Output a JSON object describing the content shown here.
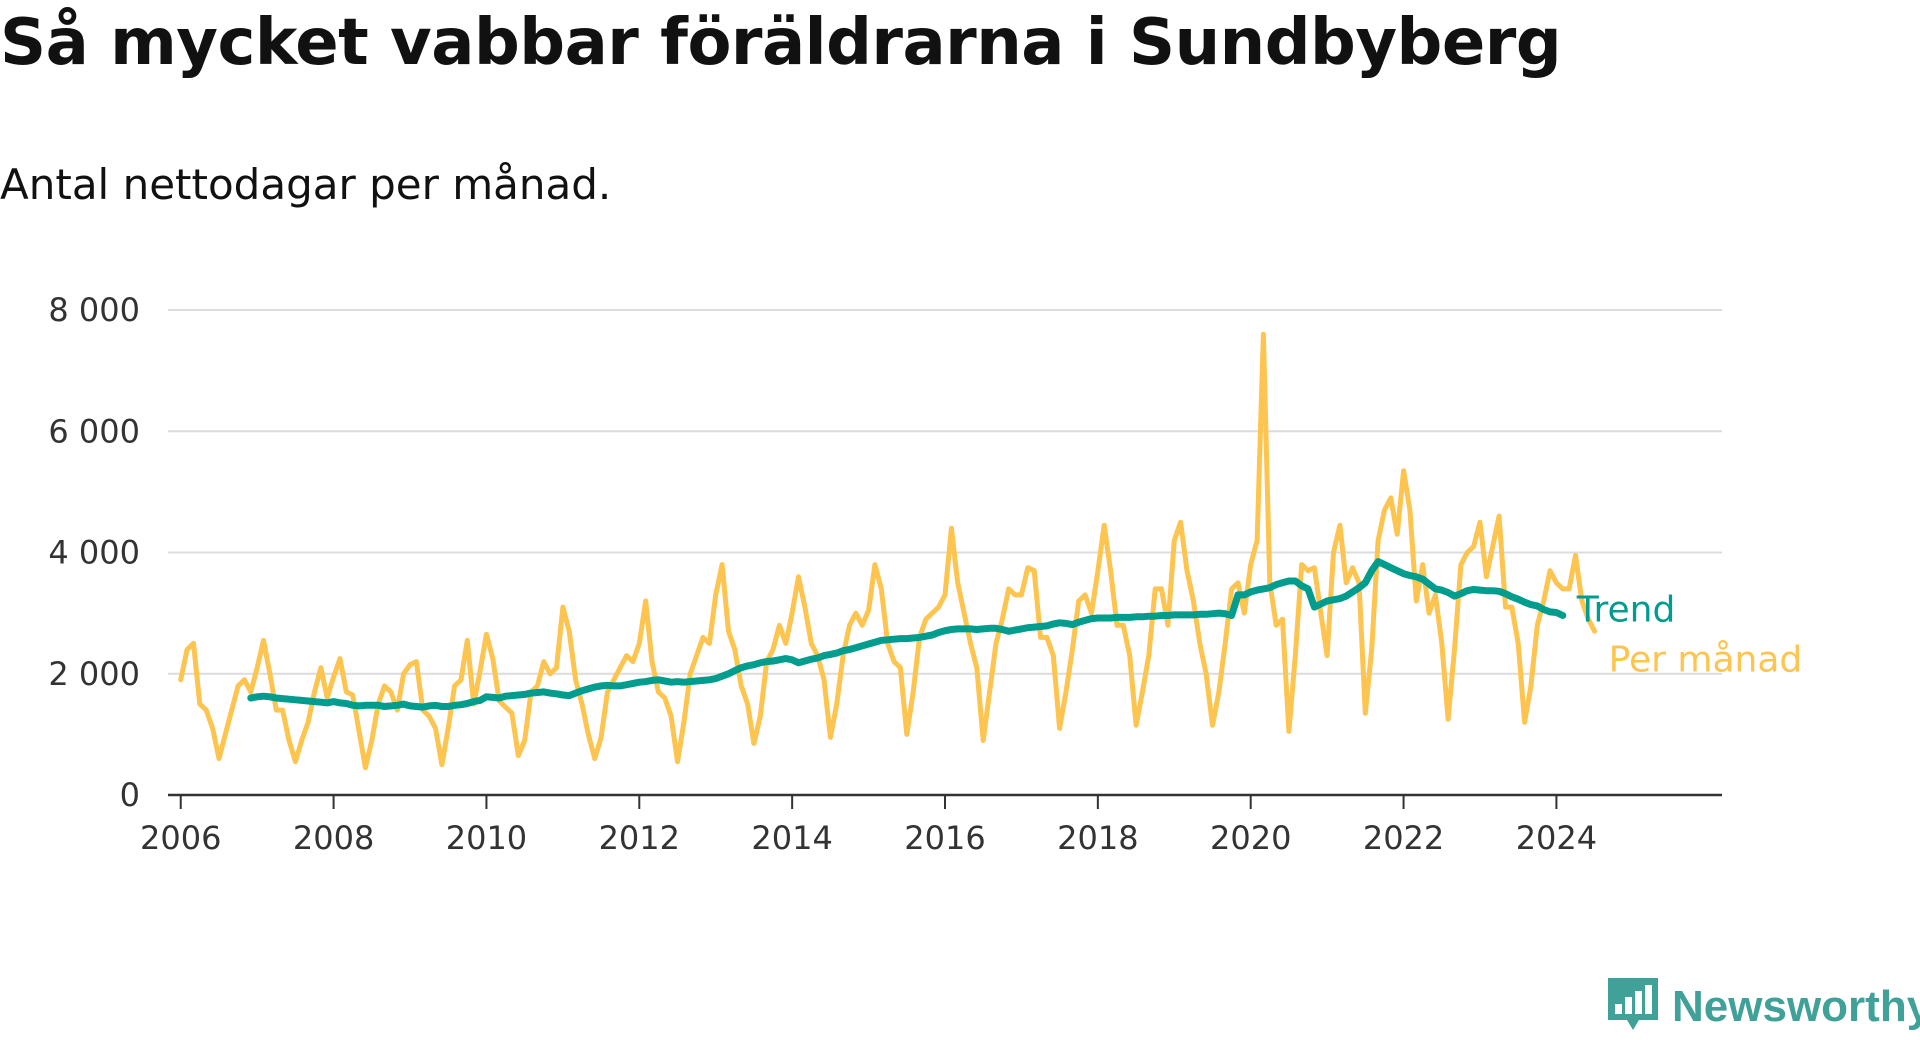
{
  "page": {
    "title": "Så mycket vabbar föräldrarna i Sundbyberg",
    "subtitle": "Antal nettodagar per månad.",
    "brand": "Newsworthy"
  },
  "colors": {
    "per_month": "#fdc44f",
    "trend": "#009c8e",
    "grid": "#dcdcdc",
    "axis": "#333333"
  },
  "chart_data": {
    "type": "line",
    "title": "Så mycket vabbar föräldrarna i Sundbyberg",
    "subtitle": "Antal nettodagar per månad.",
    "xlabel": "",
    "ylabel": "",
    "xlim": [
      "2005-11",
      "2026-03"
    ],
    "ylim": [
      0,
      8000
    ],
    "grid": true,
    "legend": "direct labels at right end of lines",
    "y_ticks": [
      0,
      2000,
      4000,
      6000,
      8000
    ],
    "y_tick_labels": [
      "0",
      "2 000",
      "4 000",
      "6 000",
      "8 000"
    ],
    "x_tick_labels": [
      "2006",
      "2008",
      "2010",
      "2012",
      "2014",
      "2016",
      "2018",
      "2020",
      "2022",
      "2024"
    ],
    "series": [
      {
        "name": "Per månad",
        "start": "2006-01",
        "values": [
          1900,
          2400,
          2500,
          1500,
          1400,
          1100,
          600,
          1000,
          1400,
          1800,
          1900,
          1700,
          2100,
          2550,
          2000,
          1400,
          1400,
          900,
          550,
          900,
          1200,
          1700,
          2100,
          1600,
          1950,
          2250,
          1700,
          1650,
          1050,
          450,
          900,
          1500,
          1800,
          1700,
          1400,
          2000,
          2150,
          2200,
          1400,
          1300,
          1100,
          500,
          1100,
          1800,
          1900,
          2550,
          1500,
          2050,
          2650,
          2250,
          1550,
          1450,
          1350,
          650,
          900,
          1700,
          1800,
          2200,
          2000,
          2100,
          3100,
          2700,
          1900,
          1500,
          1000,
          600,
          950,
          1700,
          1900,
          2100,
          2300,
          2200,
          2500,
          3200,
          2200,
          1700,
          1600,
          1300,
          550,
          1200,
          2000,
          2300,
          2600,
          2500,
          3300,
          3800,
          2700,
          2400,
          1800,
          1500,
          850,
          1300,
          2200,
          2400,
          2800,
          2500,
          3000,
          3600,
          3100,
          2500,
          2300,
          1900,
          950,
          1500,
          2300,
          2800,
          3000,
          2800,
          3050,
          3800,
          3400,
          2500,
          2200,
          2100,
          1000,
          1700,
          2600,
          2900,
          3000,
          3100,
          3300,
          4400,
          3500,
          3000,
          2500,
          2100,
          900,
          1700,
          2500,
          2900,
          3400,
          3300,
          3300,
          3750,
          3700,
          2600,
          2600,
          2300,
          1100,
          1700,
          2400,
          3200,
          3300,
          3000,
          3700,
          4450,
          3700,
          2800,
          2800,
          2300,
          1150,
          1700,
          2300,
          3400,
          3400,
          2800,
          4200,
          4500,
          3700,
          3200,
          2500,
          2000,
          1150,
          1700,
          2500,
          3400,
          3500,
          3000,
          3800,
          4200,
          7600,
          3500,
          2800,
          2900,
          1050,
          2300,
          3800,
          3700,
          3750,
          3000,
          2300,
          4000,
          4450,
          3500,
          3750,
          3500,
          1350,
          2400,
          4200,
          4700,
          4900,
          4300,
          5350,
          4700,
          3200,
          3800,
          3000,
          3300,
          2500,
          1250,
          2400,
          3800,
          4000,
          4100,
          4500,
          3600,
          4100,
          4600,
          3100,
          3100,
          2500,
          1200,
          1800,
          2800,
          3200,
          3700,
          3500,
          3400,
          3400,
          3950,
          3200,
          2900,
          2700
        ]
      },
      {
        "name": "Trend",
        "start": "2006-12",
        "values": [
          1600,
          1620,
          1630,
          1620,
          1600,
          1590,
          1580,
          1570,
          1560,
          1550,
          1540,
          1530,
          1520,
          1540,
          1520,
          1510,
          1480,
          1470,
          1480,
          1480,
          1480,
          1460,
          1470,
          1480,
          1500,
          1470,
          1460,
          1450,
          1470,
          1480,
          1460,
          1460,
          1480,
          1490,
          1510,
          1540,
          1560,
          1620,
          1610,
          1600,
          1630,
          1640,
          1650,
          1660,
          1680,
          1690,
          1700,
          1680,
          1670,
          1650,
          1640,
          1680,
          1720,
          1750,
          1780,
          1800,
          1810,
          1800,
          1800,
          1820,
          1840,
          1860,
          1870,
          1890,
          1900,
          1880,
          1860,
          1870,
          1860,
          1870,
          1880,
          1890,
          1900,
          1920,
          1960,
          2000,
          2050,
          2100,
          2130,
          2150,
          2180,
          2200,
          2210,
          2230,
          2250,
          2230,
          2180,
          2210,
          2240,
          2260,
          2300,
          2320,
          2340,
          2380,
          2400,
          2430,
          2460,
          2490,
          2520,
          2550,
          2560,
          2570,
          2580,
          2580,
          2590,
          2600,
          2620,
          2640,
          2680,
          2710,
          2730,
          2740,
          2740,
          2740,
          2730,
          2740,
          2750,
          2750,
          2730,
          2700,
          2720,
          2740,
          2760,
          2770,
          2780,
          2790,
          2820,
          2840,
          2830,
          2810,
          2850,
          2880,
          2910,
          2920,
          2920,
          2920,
          2930,
          2930,
          2930,
          2940,
          2940,
          2950,
          2950,
          2960,
          2960,
          2970,
          2970,
          2970,
          2970,
          2980,
          2980,
          2990,
          3000,
          2990,
          2960,
          3300,
          3300,
          3350,
          3380,
          3400,
          3420,
          3470,
          3500,
          3530,
          3530,
          3450,
          3400,
          3100,
          3150,
          3200,
          3220,
          3240,
          3280,
          3350,
          3420,
          3500,
          3700,
          3850,
          3800,
          3750,
          3700,
          3650,
          3620,
          3600,
          3560,
          3480,
          3400,
          3380,
          3340,
          3280,
          3320,
          3370,
          3390,
          3380,
          3370,
          3370,
          3360,
          3320,
          3270,
          3230,
          3180,
          3140,
          3120,
          3060,
          3020,
          3010,
          2960
        ]
      }
    ]
  }
}
